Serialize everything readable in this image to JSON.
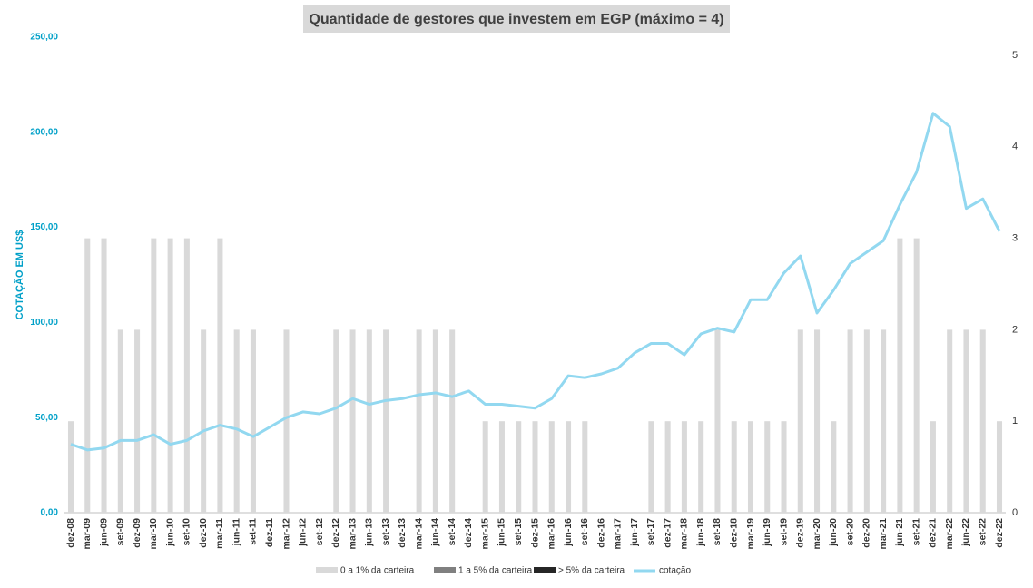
{
  "chart_data": {
    "type": "bar-line",
    "title": "Quantidade de gestores que investem em EGP (máximo = 4)",
    "ylabel": "COTAÇÃO EM US$",
    "categories": [
      "dez-08",
      "mar-09",
      "jun-09",
      "set-09",
      "dez-09",
      "mar-10",
      "jun-10",
      "set-10",
      "dez-10",
      "mar-11",
      "jun-11",
      "set-11",
      "dez-11",
      "mar-12",
      "jun-12",
      "set-12",
      "dez-12",
      "mar-13",
      "jun-13",
      "set-13",
      "dez-13",
      "mar-14",
      "jun-14",
      "set-14",
      "dez-14",
      "mar-15",
      "jun-15",
      "set-15",
      "dez-15",
      "mar-16",
      "jun-16",
      "set-16",
      "dez-16",
      "mar-17",
      "jun-17",
      "set-17",
      "dez-17",
      "mar-18",
      "jun-18",
      "set-18",
      "dez-18",
      "mar-19",
      "jun-19",
      "set-19",
      "dez-19",
      "mar-20",
      "jun-20",
      "set-20",
      "dez-20",
      "mar-21",
      "jun-21",
      "set-21",
      "dez-21",
      "mar-22",
      "jun-22",
      "set-22",
      "dez-22"
    ],
    "series": [
      {
        "name": "0 a 1% da carteira",
        "color": "#d9d9d9",
        "kind": "bar",
        "axis": "y2",
        "values": [
          1,
          3,
          3,
          2,
          2,
          3,
          3,
          3,
          2,
          3,
          2,
          2,
          0,
          2,
          0,
          0,
          2,
          2,
          2,
          2,
          0,
          2,
          2,
          2,
          0,
          1,
          1,
          1,
          1,
          1,
          1,
          1,
          0,
          0,
          0,
          1,
          1,
          1,
          1,
          2,
          1,
          1,
          1,
          1,
          2,
          2,
          1,
          2,
          2,
          2,
          3,
          3,
          1,
          2,
          2,
          2,
          1
        ]
      },
      {
        "name": "1 a 5% da carteira",
        "color": "#808080",
        "kind": "bar",
        "axis": "y2",
        "values": [
          0,
          0,
          0,
          0,
          0,
          0,
          0,
          0,
          0,
          0,
          0,
          0,
          0,
          0,
          0,
          0,
          0,
          0,
          0,
          0,
          0,
          0,
          0,
          0,
          0,
          0,
          0,
          0,
          0,
          0,
          0,
          0,
          0,
          0,
          0,
          0,
          0,
          0,
          0,
          0,
          0,
          0,
          0,
          0,
          0,
          0,
          0,
          0,
          0,
          0,
          0,
          0,
          0,
          0,
          0,
          0,
          0
        ]
      },
      {
        "name": "> 5% da carteira",
        "color": "#262626",
        "kind": "bar",
        "axis": "y2",
        "values": [
          0,
          0,
          0,
          0,
          0,
          0,
          0,
          0,
          0,
          0,
          0,
          0,
          0,
          0,
          0,
          0,
          0,
          0,
          0,
          0,
          0,
          0,
          0,
          0,
          0,
          0,
          0,
          0,
          0,
          0,
          0,
          0,
          0,
          0,
          0,
          0,
          0,
          0,
          0,
          0,
          0,
          0,
          0,
          0,
          0,
          0,
          0,
          0,
          0,
          0,
          0,
          0,
          0,
          0,
          0,
          0,
          0
        ]
      },
      {
        "name": "cotação",
        "color": "#92d8f0",
        "kind": "line",
        "axis": "y",
        "values": [
          36,
          33,
          34,
          38,
          38,
          41,
          36,
          38,
          43,
          46,
          44,
          40,
          45,
          50,
          53,
          52,
          55,
          60,
          57,
          59,
          60,
          62,
          63,
          61,
          64,
          57,
          57,
          56,
          55,
          60,
          72,
          71,
          73,
          76,
          84,
          89,
          89,
          83,
          94,
          97,
          95,
          112,
          112,
          126,
          135,
          105,
          117,
          131,
          137,
          143,
          162,
          179,
          210,
          203,
          160,
          165,
          148
        ]
      }
    ],
    "ylim": [
      0,
      250
    ],
    "yticks": [
      {
        "value": 0,
        "label": "0,00"
      },
      {
        "value": 50,
        "label": "50,00"
      },
      {
        "value": 100,
        "label": "100,00"
      },
      {
        "value": 150,
        "label": "150,00"
      },
      {
        "value": 200,
        "label": "200,00"
      },
      {
        "value": 250,
        "label": "250,00"
      }
    ],
    "y2lim": [
      0,
      5
    ],
    "y2ticks": [
      0,
      1,
      2,
      3,
      4,
      5
    ],
    "legend": "bottom"
  }
}
